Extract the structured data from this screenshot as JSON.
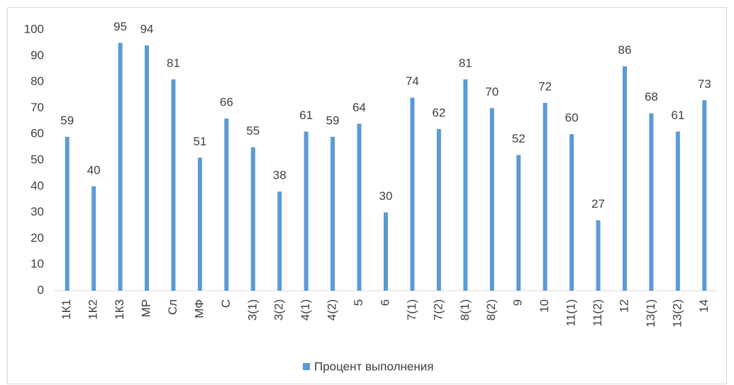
{
  "chart_data": {
    "type": "bar",
    "categories": [
      "1К1",
      "1К2",
      "1К3",
      "МР",
      "Сл",
      "МФ",
      "С",
      "3(1)",
      "3(2)",
      "4(1)",
      "4(2)",
      "5",
      "6",
      "7(1)",
      "7(2)",
      "8(1)",
      "8(2)",
      "9",
      "10",
      "11(1)",
      "11(2)",
      "12",
      "13(1)",
      "13(2)",
      "14"
    ],
    "series": [
      {
        "name": "Процент выполнения",
        "color": "#5b9bd5",
        "values": [
          59,
          40,
          95,
          94,
          81,
          51,
          66,
          55,
          38,
          61,
          59,
          64,
          30,
          74,
          62,
          81,
          70,
          52,
          72,
          60,
          27,
          86,
          68,
          61,
          73
        ]
      }
    ],
    "ylim": [
      0,
      100
    ],
    "yticks": [
      0,
      10,
      20,
      30,
      40,
      50,
      60,
      70,
      80,
      90,
      100
    ],
    "grid": false,
    "legend": "bottom"
  }
}
